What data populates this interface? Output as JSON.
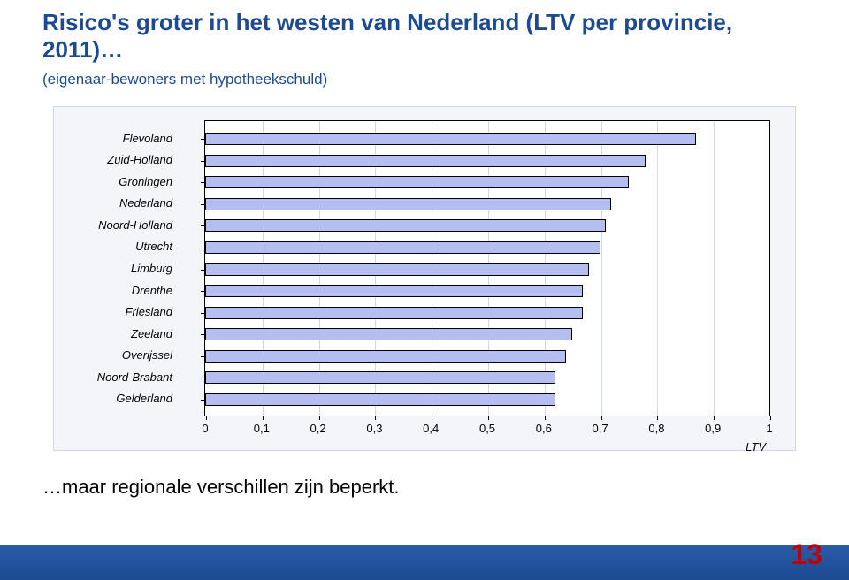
{
  "title": {
    "text": "Risico's groter in het westen van Nederland (LTV per provincie, 2011)…",
    "color": "#1d4a90",
    "fontsize": 26
  },
  "subtitle": {
    "text": "(eigenaar-bewoners met hypotheekschuld)",
    "color": "#1d4a90",
    "fontsize": 17
  },
  "ltv_chart": {
    "type": "bar-horizontal",
    "categories": [
      "Flevoland",
      "Zuid-Holland",
      "Groningen",
      "Nederland",
      "Noord-Holland",
      "Utrecht",
      "Limburg",
      "Drenthe",
      "Friesland",
      "Zeeland",
      "Overijssel",
      "Noord-Brabant",
      "Gelderland"
    ],
    "values": [
      0.87,
      0.78,
      0.75,
      0.72,
      0.71,
      0.7,
      0.68,
      0.67,
      0.67,
      0.65,
      0.64,
      0.62,
      0.62
    ],
    "xlim": [
      0,
      1
    ],
    "xticks": [
      0,
      0.1,
      0.2,
      0.3,
      0.4,
      0.5,
      0.6,
      0.7,
      0.8,
      0.9,
      1
    ],
    "xtick_labels": [
      "0",
      "0,1",
      "0,2",
      "0,3",
      "0,4",
      "0,5",
      "0,6",
      "0,7",
      "0,8",
      "0,9",
      "1"
    ],
    "x_axis_label": "LTV",
    "bar_fill": "#b4bef0",
    "bar_border": "#000000",
    "plot_bg": "#ffffff",
    "panel_bg": "#f3f5f8",
    "grid_color": "#cfd8e3",
    "label_fontsize": 13,
    "tick_fontsize": 13,
    "label_color": "#000000",
    "y_label_font_style": "italic"
  },
  "footer": {
    "text": "…maar regionale verschillen zijn beperkt.",
    "fontsize": 22,
    "color": "#000000"
  },
  "page_number": {
    "text": "13",
    "fontsize": 32,
    "color": "#c00000"
  },
  "footer_bar_gradient": [
    "#2a5ca8",
    "#1d4a90"
  ]
}
